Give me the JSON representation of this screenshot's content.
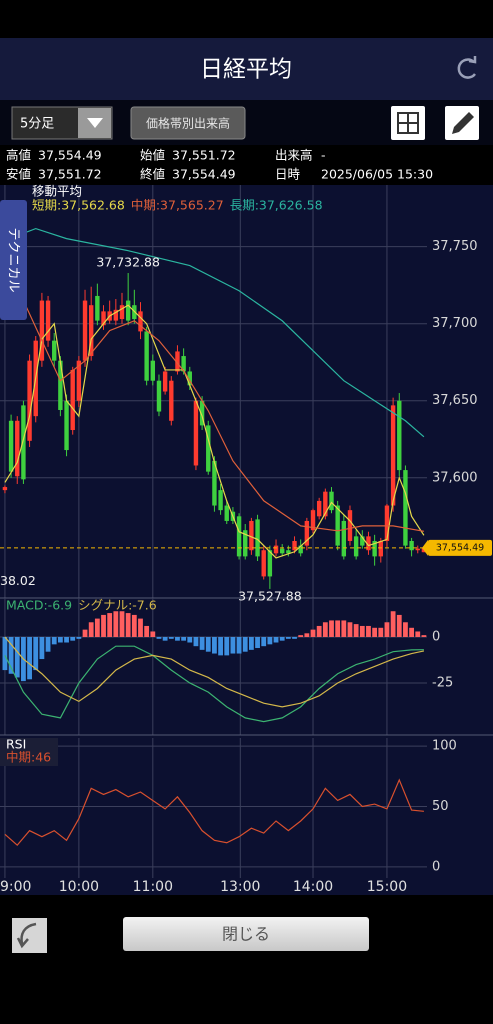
{
  "header": {
    "title": "日経平均"
  },
  "toolbar": {
    "interval": "5分足",
    "volume_profile": "価格帯別出来高"
  },
  "info": {
    "rows": [
      [
        "高値",
        "37,554.49",
        "始値",
        "37,551.72",
        "出来高",
        "-"
      ],
      [
        "安値",
        "37,551.72",
        "終値",
        "37,554.49",
        "日時",
        "2025/06/05 15:30"
      ]
    ]
  },
  "side_tab": "テクニカル",
  "footer": {
    "close": "閉じる"
  },
  "chart_data": [
    {
      "type": "candlestick",
      "title": "移動平均",
      "up_color": "#ff3b2f",
      "down_color": "#3fd13f",
      "xlim": [
        -0.8,
        68.5
      ],
      "ylim": [
        37522,
        37790
      ],
      "yticks": [
        {
          "value": 37600,
          "label": "37,600"
        },
        {
          "value": 37650,
          "label": "37,650"
        },
        {
          "value": 37700,
          "label": "37,700"
        },
        {
          "value": 37750,
          "label": "37,750"
        }
      ],
      "x": [
        0,
        1,
        2,
        3,
        4,
        5,
        6,
        7,
        8,
        9,
        10,
        11,
        12,
        13,
        14,
        15,
        16,
        17,
        18,
        19,
        20,
        21,
        22,
        23,
        24,
        25,
        26,
        27,
        28,
        29,
        30,
        31,
        32,
        33,
        34,
        35,
        36,
        37,
        38,
        39,
        40,
        41,
        42,
        43,
        44,
        45,
        46,
        47,
        48,
        49,
        50,
        51,
        52,
        53,
        54,
        55,
        56,
        57,
        58,
        59,
        60,
        61,
        62,
        63,
        64,
        65,
        66,
        67,
        68
      ],
      "ohlc": [
        [
          37592,
          37595,
          37590,
          37594
        ],
        [
          37637,
          37641,
          37600,
          37604
        ],
        [
          37601,
          37640,
          37596,
          37637
        ],
        [
          37647,
          37650,
          37596,
          37599
        ],
        [
          37624,
          37680,
          37620,
          37676
        ],
        [
          37640,
          37692,
          37636,
          37689
        ],
        [
          37676,
          37720,
          37672,
          37715
        ],
        [
          37689,
          37718,
          37685,
          37715
        ],
        [
          37689,
          37694,
          37672,
          37676
        ],
        [
          37676,
          37679,
          37640,
          37644
        ],
        [
          37650,
          37654,
          37614,
          37618
        ],
        [
          37631,
          37672,
          37628,
          37670
        ],
        [
          37650,
          37679,
          37646,
          37676
        ],
        [
          37676,
          37722,
          37672,
          37715
        ],
        [
          37679,
          37724,
          37676,
          37712
        ],
        [
          37718,
          37726,
          37699,
          37702
        ],
        [
          37699,
          37712,
          37696,
          37708
        ],
        [
          37702,
          37715,
          37700,
          37708
        ],
        [
          37702,
          37716,
          37699,
          37709
        ],
        [
          37703,
          37720,
          37700,
          37712
        ],
        [
          37715,
          37732.88,
          37699,
          37702
        ],
        [
          37712,
          37722,
          37700,
          37703
        ],
        [
          37695,
          37714,
          37690,
          37708
        ],
        [
          37695,
          37698,
          37660,
          37663
        ],
        [
          37676,
          37680,
          37660,
          37663
        ],
        [
          37663,
          37667,
          37640,
          37643
        ],
        [
          37656,
          37672,
          37654,
          37669
        ],
        [
          37637,
          37666,
          37634,
          37663
        ],
        [
          37669,
          37686,
          37667,
          37682
        ],
        [
          37679,
          37684,
          37667,
          37669
        ],
        [
          37669,
          37672,
          37657,
          37660
        ],
        [
          37608,
          37652,
          37605,
          37650
        ],
        [
          37650,
          37653,
          37631,
          37634
        ],
        [
          37634,
          37637,
          37602,
          37604
        ],
        [
          37611,
          37614,
          37578,
          37582
        ],
        [
          37592,
          37596,
          37576,
          37579
        ],
        [
          37582,
          37585,
          37570,
          37572
        ],
        [
          37578,
          37581,
          37570,
          37572
        ],
        [
          37575,
          37577,
          37547,
          37549
        ],
        [
          37566,
          37570,
          37547,
          37549
        ],
        [
          37553,
          37574,
          37550,
          37572
        ],
        [
          37573,
          37576,
          37546,
          37549
        ],
        [
          37536,
          37556,
          37534,
          37553
        ],
        [
          37553,
          37556,
          37527.88,
          37536
        ],
        [
          37551,
          37560,
          37549,
          37556
        ],
        [
          37554,
          37557,
          37549,
          37551
        ],
        [
          37553,
          37556,
          37549,
          37551
        ],
        [
          37553,
          37562,
          37551,
          37559
        ],
        [
          37556,
          37560,
          37549,
          37551
        ],
        [
          37556,
          37574,
          37553,
          37572
        ],
        [
          37566,
          37580,
          37564,
          37579
        ],
        [
          37575,
          37587,
          37573,
          37585
        ],
        [
          37575,
          37593,
          37573,
          37591
        ],
        [
          37591,
          37594,
          37577,
          37579
        ],
        [
          37582,
          37585,
          37553,
          37556
        ],
        [
          37572,
          37576,
          37547,
          37549
        ],
        [
          37559,
          37582,
          37556,
          37579
        ],
        [
          37562,
          37566,
          37547,
          37549
        ],
        [
          37562,
          37566,
          37554,
          37556
        ],
        [
          37553,
          37565,
          37550,
          37562
        ],
        [
          37559,
          37563,
          37543,
          37549
        ],
        [
          37549,
          37561,
          37545,
          37559
        ],
        [
          37559,
          37583,
          37555,
          37582
        ],
        [
          37582,
          37652,
          37578,
          37647
        ],
        [
          37650,
          37655,
          37601,
          37605
        ],
        [
          37605,
          37608,
          37554,
          37556
        ],
        [
          37559,
          37561,
          37549,
          37553
        ],
        [
          37553,
          37556,
          37551,
          37554
        ],
        [
          37551.72,
          37554.49,
          37551.72,
          37554.49
        ]
      ],
      "series": [
        {
          "name": "短期:37,562.68",
          "color": "#e5d84a",
          "x": [
            0,
            2,
            4,
            6,
            8,
            10,
            12,
            14,
            17,
            20,
            23,
            26,
            29,
            32,
            34,
            36,
            38,
            41,
            44,
            47,
            50,
            53,
            56,
            59,
            62,
            63,
            64,
            65,
            66,
            68
          ],
          "values": [
            37597,
            37610,
            37640,
            37690,
            37700,
            37650,
            37640,
            37690,
            37705,
            37712,
            37700,
            37670,
            37670,
            37640,
            37610,
            37585,
            37565,
            37560,
            37548,
            37552,
            37563,
            37584,
            37572,
            37556,
            37560,
            37585,
            37600,
            37590,
            37575,
            37562.68
          ]
        },
        {
          "name": "中期:37,565.27",
          "color": "#e0603a",
          "x": [
            0,
            3,
            6,
            9,
            13,
            17,
            21,
            25,
            29,
            33,
            37,
            42,
            48,
            54,
            58,
            63,
            68
          ],
          "values": [
            37753.9,
            37715,
            37689,
            37663,
            37676,
            37695.5,
            37701.9,
            37689,
            37669.5,
            37643.5,
            37611,
            37585.1,
            37568.8,
            37565.6,
            37568.8,
            37568.8,
            37565.27
          ]
        },
        {
          "name": "長期:37,626.58",
          "color": "#2bb5a0",
          "x": [
            2,
            5,
            10,
            20,
            30,
            38,
            45,
            50,
            55,
            60,
            65,
            68
          ],
          "values": [
            37757.1,
            37761.7,
            37755.2,
            37747.4,
            37737.7,
            37721.4,
            37701.9,
            37682.5,
            37663,
            37650,
            37637,
            37626.58
          ]
        }
      ],
      "annotations": [
        {
          "label": "37,732.88",
          "value": 37732.88,
          "x": 20
        },
        {
          "label": "37,527.88",
          "value": 37527.88,
          "x": 43
        },
        {
          "label": "38.02",
          "value": 37538.02,
          "x": 0
        }
      ],
      "price_line": {
        "value": 37554.49,
        "label": "37,554.49",
        "color": "#f5b800"
      }
    },
    {
      "type": "bar",
      "up_color": "#ff5f5f",
      "down_color": "#3d8fe0",
      "xlim": [
        -0.8,
        68.5
      ],
      "ylim": [
        -53.3,
        21.2
      ],
      "yticks": [
        0,
        -25
      ],
      "x": [
        0,
        1,
        2,
        3,
        4,
        5,
        6,
        7,
        8,
        9,
        10,
        11,
        12,
        13,
        14,
        15,
        16,
        17,
        18,
        19,
        20,
        21,
        22,
        23,
        24,
        25,
        26,
        27,
        28,
        29,
        30,
        31,
        32,
        33,
        34,
        35,
        36,
        37,
        38,
        39,
        40,
        41,
        42,
        43,
        44,
        45,
        46,
        47,
        48,
        49,
        50,
        51,
        52,
        53,
        54,
        55,
        56,
        57,
        58,
        59,
        60,
        61,
        62,
        63,
        64,
        65,
        66,
        67,
        68
      ],
      "values": [
        -18,
        -20,
        -22,
        -24,
        -23,
        -18,
        -12,
        -8,
        -4,
        -3,
        -3,
        -2,
        -1,
        4,
        8,
        10,
        12,
        13,
        14,
        14,
        13,
        12,
        10,
        6,
        3,
        -1,
        -2,
        -1,
        -2,
        -2,
        -3,
        -5,
        -7,
        -8,
        -9,
        -10,
        -10,
        -9,
        -9,
        -8,
        -7,
        -6,
        -5,
        -4,
        -3,
        -2,
        -1,
        -1,
        1,
        2,
        4,
        6,
        8,
        9,
        9,
        9,
        8,
        7,
        6,
        6,
        5,
        5,
        8,
        14,
        12,
        8,
        5,
        3,
        1
      ],
      "series": [
        {
          "name": "MACD:-6.9",
          "color": "#3cb371",
          "x": [
            0,
            3,
            6,
            9,
            12,
            15,
            18,
            21,
            24,
            27,
            30,
            33,
            36,
            39,
            42,
            45,
            48,
            51,
            54,
            57,
            60,
            63,
            66,
            68
          ],
          "values": [
            -10,
            -30,
            -42,
            -44,
            -25,
            -12,
            -5,
            -5,
            -10,
            -18,
            -25,
            -30,
            -38,
            -44,
            -46,
            -44,
            -38,
            -28,
            -20,
            -15,
            -12,
            -8,
            -7,
            -6.9
          ]
        },
        {
          "name": "シグナル:-7.6",
          "color": "#d4b84a",
          "x": [
            0,
            3,
            6,
            9,
            12,
            15,
            18,
            21,
            24,
            27,
            30,
            33,
            36,
            39,
            42,
            45,
            48,
            51,
            54,
            57,
            60,
            63,
            66,
            68
          ],
          "values": [
            0,
            -12,
            -20,
            -30,
            -35,
            -28,
            -18,
            -12,
            -10,
            -12,
            -18,
            -22,
            -28,
            -32,
            -36,
            -38,
            -36,
            -32,
            -25,
            -20,
            -16,
            -12,
            -9,
            -7.6
          ]
        }
      ]
    },
    {
      "type": "line",
      "title": "RSI",
      "xlim": [
        -0.8,
        68.5
      ],
      "ylim": [
        -9.2,
        106.7
      ],
      "yticks": [
        0,
        50,
        100
      ],
      "xticks": [
        {
          "value": 0,
          "label": "9:00"
        },
        {
          "value": 12,
          "label": "10:00"
        },
        {
          "value": 24,
          "label": "11:00"
        },
        {
          "value": 38.2,
          "label": "13:00"
        },
        {
          "value": 50,
          "label": "14:00"
        },
        {
          "value": 62,
          "label": "15:00"
        }
      ],
      "series": [
        {
          "name": "中期:46",
          "color": "#d8502e",
          "x": [
            0,
            2,
            4,
            6,
            8,
            10,
            12,
            14,
            16,
            18,
            20,
            22,
            24,
            26,
            28,
            30,
            32,
            34,
            36,
            38,
            40,
            42,
            44,
            46,
            48,
            50,
            52,
            54,
            56,
            58,
            60,
            62,
            64,
            66,
            68
          ],
          "values": [
            27,
            18,
            30,
            25,
            30,
            22,
            40,
            65,
            60,
            64,
            58,
            62,
            55,
            48,
            58,
            45,
            30,
            22,
            20,
            25,
            32,
            28,
            38,
            30,
            38,
            48,
            65,
            55,
            60,
            50,
            52,
            48,
            72,
            47,
            46
          ]
        }
      ]
    }
  ]
}
